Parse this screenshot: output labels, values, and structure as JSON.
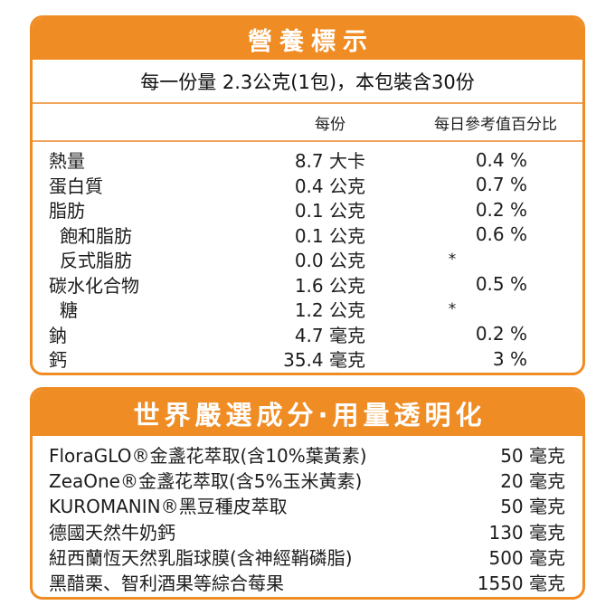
{
  "theme": {
    "accent_orange": "#ef8c24",
    "separator_orange": "#f0a55c",
    "text_color": "#1c1c1c",
    "header_text_color": "#ffffff"
  },
  "nutrition_panel": {
    "title": "營養標示",
    "serving_line": "每一份量 2.3公克(1包)，本包裝含30份",
    "columns": {
      "per_serving": "每份",
      "daily_value": "每日參考值百分比"
    },
    "rows": [
      {
        "label": "熱量",
        "indent": false,
        "amount": "8.7 大卡",
        "dv": "0.4 %"
      },
      {
        "label": "蛋白質",
        "indent": false,
        "amount": "0.4 公克",
        "dv": "0.7 %"
      },
      {
        "label": "脂肪",
        "indent": false,
        "amount": "0.1 公克",
        "dv": "0.2 %"
      },
      {
        "label": "飽和脂肪",
        "indent": true,
        "amount": "0.1 公克",
        "dv": "0.6 %"
      },
      {
        "label": "反式脂肪",
        "indent": true,
        "amount": "0.0 公克",
        "dv": "*"
      },
      {
        "label": "碳水化合物",
        "indent": false,
        "amount": "1.6 公克",
        "dv": "0.5 %"
      },
      {
        "label": "糖",
        "indent": true,
        "amount": "1.2 公克",
        "dv": "*"
      },
      {
        "label": "鈉",
        "indent": false,
        "amount": "4.7 毫克",
        "dv": "0.2 %"
      },
      {
        "label": "鈣",
        "indent": false,
        "amount": "35.4 毫克",
        "dv": "3 %"
      }
    ]
  },
  "ingredients_panel": {
    "title": "世界嚴選成分·用量透明化",
    "rows": [
      {
        "label": "FloraGLO®金盞花萃取(含10%葉黃素)",
        "amount": "50 毫克"
      },
      {
        "label": "ZeaOne®金盞花萃取(含5%玉米黃素)",
        "amount": "20 毫克"
      },
      {
        "label": "KUROMANIN®黑豆種皮萃取",
        "amount": "50 毫克"
      },
      {
        "label": "德國天然牛奶鈣",
        "amount": "130 毫克"
      },
      {
        "label": "紐西蘭恆天然乳脂球膜(含神經鞘磷脂)",
        "amount": "500 毫克"
      },
      {
        "label": "黑醋栗、智利酒果等綜合莓果",
        "amount": "1550 毫克"
      }
    ]
  }
}
